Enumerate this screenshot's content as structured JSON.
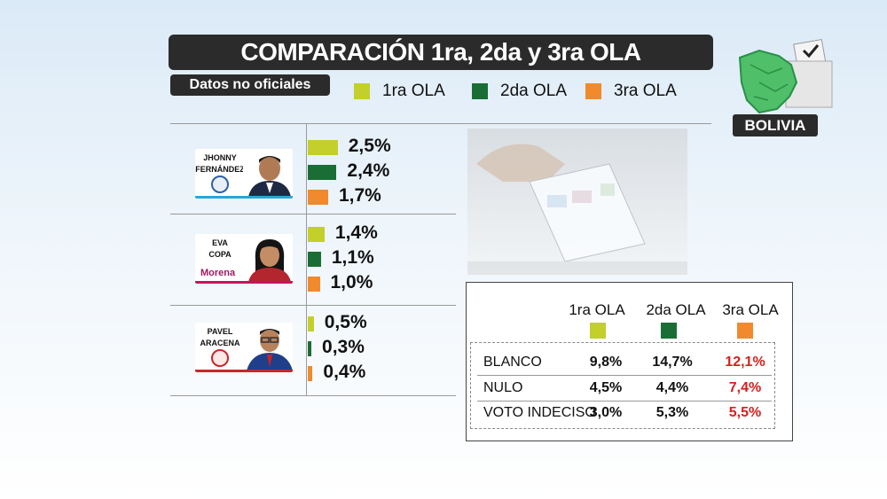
{
  "title": "COMPARACIÓN 1ra, 2da y 3ra OLA",
  "subtitle": "Datos no oficiales",
  "badge": "BOLIVIA",
  "colors": {
    "ola1": "#c3cf2b",
    "ola2": "#1a6e35",
    "ola3": "#f08a2c",
    "highlight": "#d81e1e"
  },
  "legend": [
    {
      "label": "1ra OLA",
      "color": "#c3cf2b"
    },
    {
      "label": "2da OLA",
      "color": "#1a6e35"
    },
    {
      "label": "3ra OLA",
      "color": "#f08a2c"
    }
  ],
  "candidates": [
    {
      "name_line1": "JHONNY",
      "name_line2": "FERNÁNDEZ",
      "party_logo": "uci-logo-icon"
    },
    {
      "name_line1": "EVA",
      "name_line2": "COPA",
      "party_logo": "morena-logo",
      "party_text": "Morena"
    },
    {
      "name_line1": "PAVEL",
      "name_line2": "ARACENA",
      "party_logo": "party-logo-icon"
    }
  ],
  "chart_data": {
    "type": "bar",
    "orientation": "horizontal",
    "categories": [
      "JHONNY FERNÁNDEZ",
      "EVA COPA",
      "PAVEL ARACENA"
    ],
    "series": [
      {
        "name": "1ra OLA",
        "values": [
          2.5,
          1.4,
          0.5
        ],
        "labels": [
          "2,5%",
          "1,4%",
          "0,5%"
        ]
      },
      {
        "name": "2da OLA",
        "values": [
          2.4,
          1.1,
          0.3
        ],
        "labels": [
          "2,4%",
          "1,1%",
          "0,3%"
        ]
      },
      {
        "name": "3ra OLA",
        "values": [
          1.7,
          1.0,
          0.4
        ],
        "labels": [
          "1,7%",
          "1,0%",
          "0,4%"
        ]
      }
    ],
    "unit": "%"
  },
  "table": {
    "headers": [
      "1ra OLA",
      "2da OLA",
      "3ra OLA"
    ],
    "rows": [
      {
        "label": "BLANCO",
        "values": [
          "9,8%",
          "14,7%",
          "12,1%"
        ]
      },
      {
        "label": "NULO",
        "values": [
          "4,5%",
          "4,4%",
          "7,4%"
        ]
      },
      {
        "label": "VOTO INDECISO",
        "values": [
          "3,0%",
          "5,3%",
          "5,5%"
        ]
      }
    ]
  }
}
